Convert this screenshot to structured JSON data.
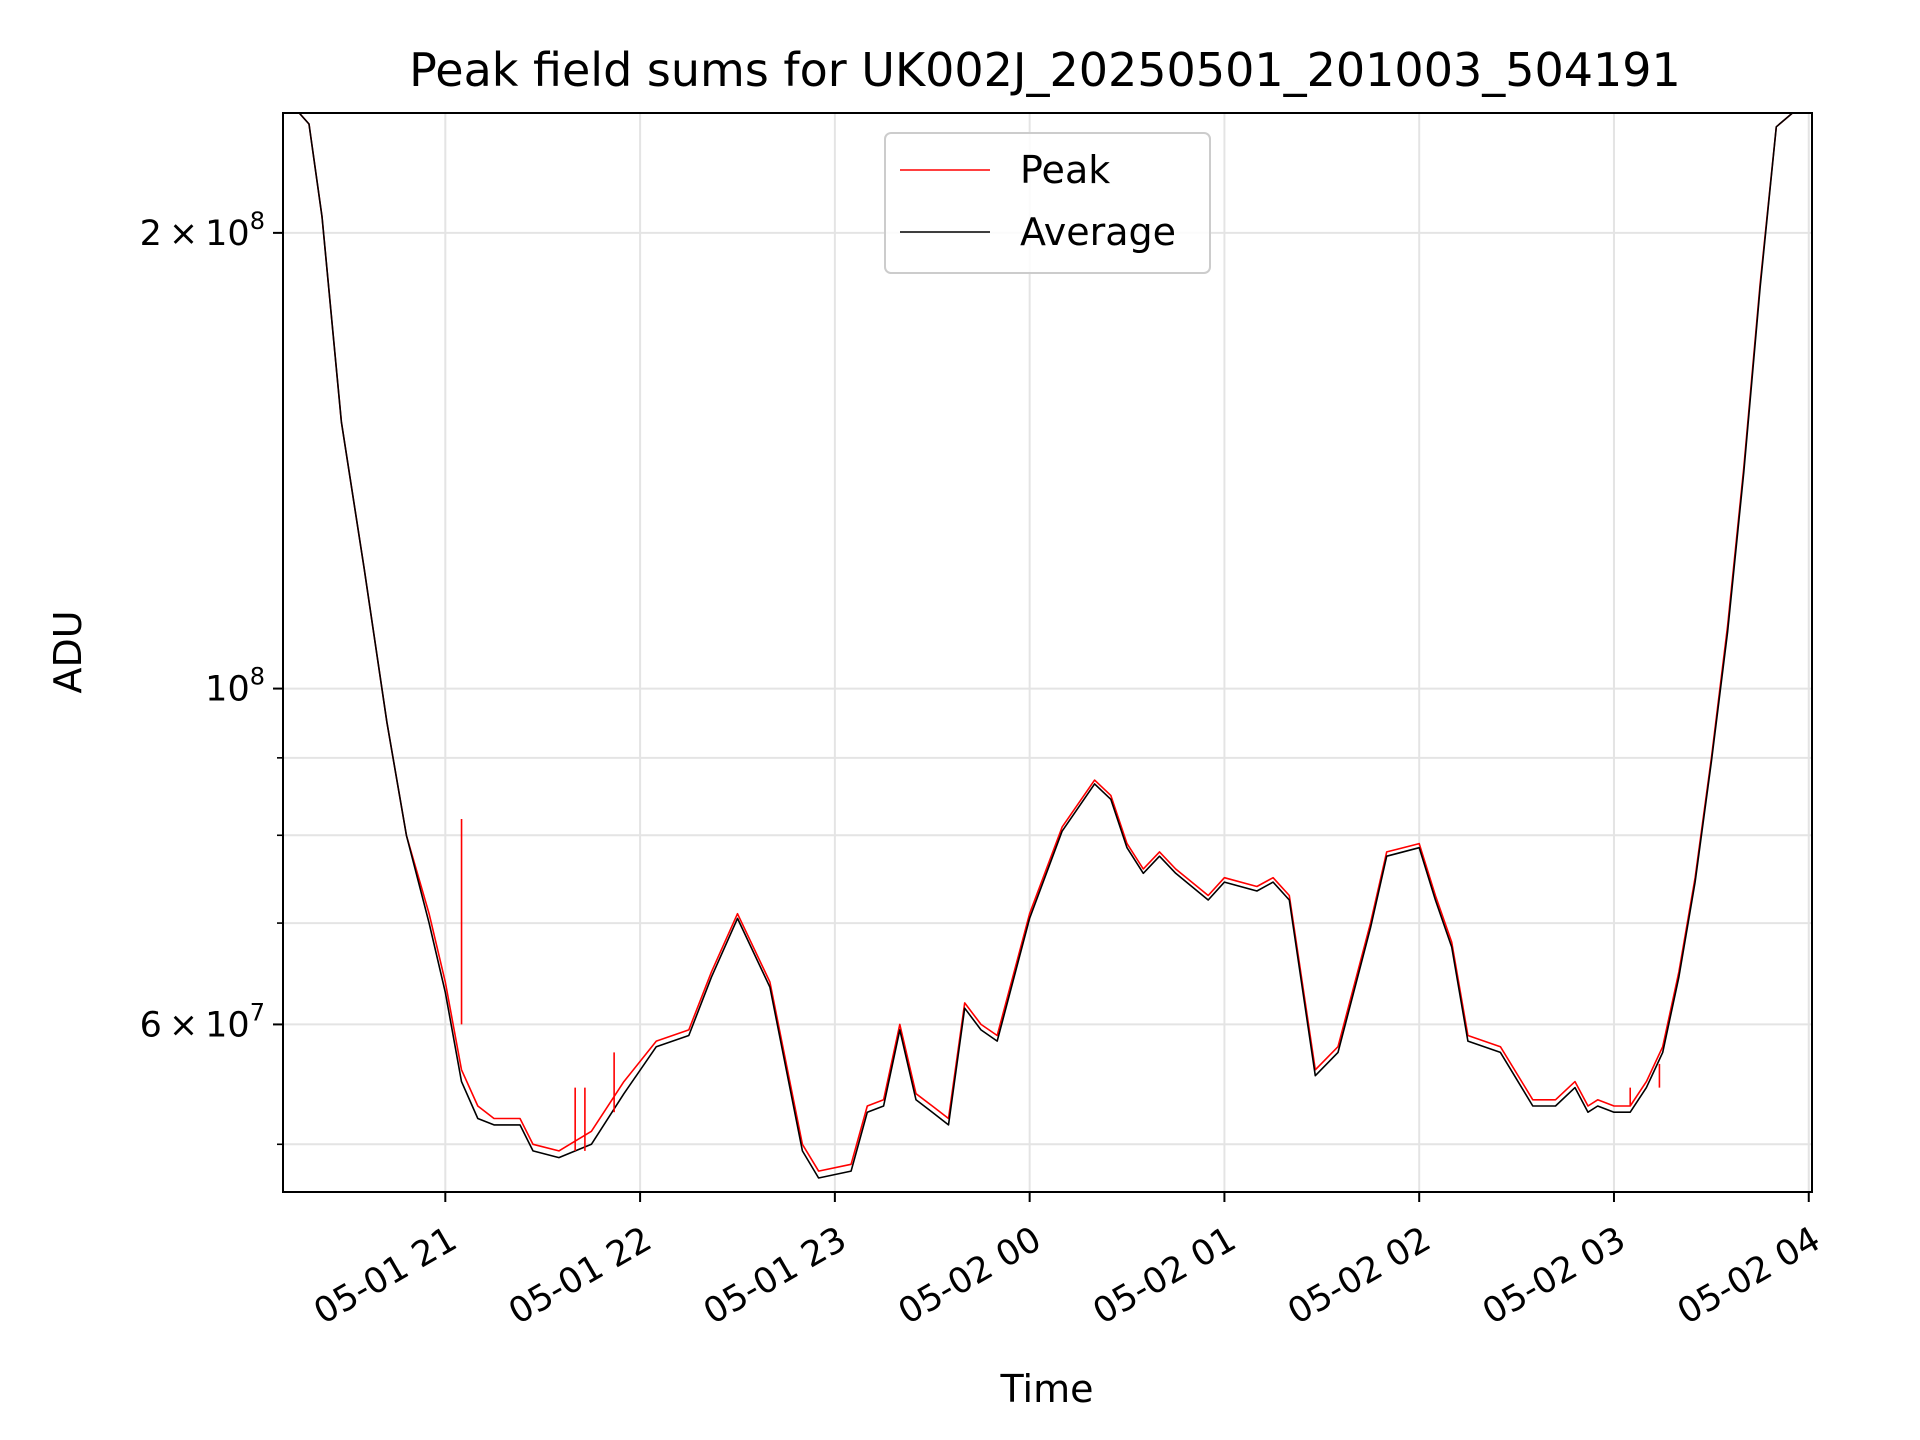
{
  "chart_data": {
    "type": "line",
    "title": "Peak field sums for UK002J_20250501_201003_504191",
    "xlabel": "Time",
    "ylabel": "ADU",
    "y_scale": "log",
    "grid": true,
    "legend_position": "upper-center",
    "xlim": [
      "2025-05-01 20:10",
      "2025-05-02 04:01"
    ],
    "ylim": [
      46500000,
      240000000
    ],
    "x_ticks": [
      {
        "value": "2025-05-01 21:00",
        "label": "05-01 21"
      },
      {
        "value": "2025-05-01 22:00",
        "label": "05-01 22"
      },
      {
        "value": "2025-05-01 23:00",
        "label": "05-01 23"
      },
      {
        "value": "2025-05-02 00:00",
        "label": "05-02 00"
      },
      {
        "value": "2025-05-02 01:00",
        "label": "05-02 01"
      },
      {
        "value": "2025-05-02 02:00",
        "label": "05-02 02"
      },
      {
        "value": "2025-05-02 03:00",
        "label": "05-02 03"
      },
      {
        "value": "2025-05-02 04:00",
        "label": "05-02 04"
      }
    ],
    "y_major_ticks": [
      {
        "value": 60000000,
        "label": "6 × 10^7",
        "mant": "6",
        "exp": "7"
      },
      {
        "value": 100000000,
        "label": "10^8",
        "mant": "",
        "exp": "8"
      },
      {
        "value": 200000000,
        "label": "2 × 10^8",
        "mant": "2",
        "exp": "8"
      }
    ],
    "y_minor_ticks": [
      50000000,
      70000000,
      80000000,
      90000000
    ],
    "series": [
      {
        "name": "Peak",
        "color": "#ff0000",
        "x": [
          "2025-05-01 20:10",
          "2025-05-01 20:15",
          "2025-05-01 20:18",
          "2025-05-01 20:22",
          "2025-05-01 20:28",
          "2025-05-01 20:35",
          "2025-05-01 20:42",
          "2025-05-01 20:48",
          "2025-05-01 20:55",
          "2025-05-01 21:00",
          "2025-05-01 21:05",
          "2025-05-01 21:10",
          "2025-05-01 21:15",
          "2025-05-01 21:20",
          "2025-05-01 21:23",
          "2025-05-01 21:27",
          "2025-05-01 21:35",
          "2025-05-01 21:45",
          "2025-05-01 21:55",
          "2025-05-01 22:05",
          "2025-05-01 22:15",
          "2025-05-01 22:22",
          "2025-05-01 22:30",
          "2025-05-01 22:40",
          "2025-05-01 22:50",
          "2025-05-01 22:55",
          "2025-05-01 23:05",
          "2025-05-01 23:10",
          "2025-05-01 23:15",
          "2025-05-01 23:20",
          "2025-05-01 23:25",
          "2025-05-01 23:30",
          "2025-05-01 23:35",
          "2025-05-01 23:40",
          "2025-05-01 23:45",
          "2025-05-01 23:50",
          "2025-05-02 00:00",
          "2025-05-02 00:10",
          "2025-05-02 00:20",
          "2025-05-02 00:25",
          "2025-05-02 00:30",
          "2025-05-02 00:35",
          "2025-05-02 00:40",
          "2025-05-02 00:45",
          "2025-05-02 00:55",
          "2025-05-02 01:00",
          "2025-05-02 01:10",
          "2025-05-02 01:15",
          "2025-05-02 01:20",
          "2025-05-02 01:28",
          "2025-05-02 01:35",
          "2025-05-02 01:45",
          "2025-05-02 01:50",
          "2025-05-02 02:00",
          "2025-05-02 02:05",
          "2025-05-02 02:10",
          "2025-05-02 02:15",
          "2025-05-02 02:25",
          "2025-05-02 02:35",
          "2025-05-02 02:42",
          "2025-05-02 02:48",
          "2025-05-02 02:52",
          "2025-05-02 02:55",
          "2025-05-02 03:00",
          "2025-05-02 03:05",
          "2025-05-02 03:10",
          "2025-05-02 03:15",
          "2025-05-02 03:20",
          "2025-05-02 03:25",
          "2025-05-02 03:30",
          "2025-05-02 03:35",
          "2025-05-02 03:40",
          "2025-05-02 03:45",
          "2025-05-02 03:50",
          "2025-05-02 03:55",
          "2025-05-02 04:01"
        ],
        "y": [
          240000000,
          240000000,
          236000000,
          205000000,
          150000000,
          120000000,
          95000000,
          80000000,
          71000000,
          64000000,
          56000000,
          53000000,
          52000000,
          52000000,
          52000000,
          50000000,
          49500000,
          51000000,
          55000000,
          58500000,
          59500000,
          65000000,
          71000000,
          64000000,
          50000000,
          48000000,
          48500000,
          53000000,
          53500000,
          60000000,
          54000000,
          53000000,
          52000000,
          62000000,
          60000000,
          59000000,
          71000000,
          81000000,
          87000000,
          85000000,
          79000000,
          76000000,
          78000000,
          76000000,
          73000000,
          75000000,
          74000000,
          75000000,
          73000000,
          56000000,
          58000000,
          70000000,
          78000000,
          79000000,
          73000000,
          68000000,
          59000000,
          58000000,
          53500000,
          53500000,
          55000000,
          53000000,
          53500000,
          53000000,
          53000000,
          55000000,
          58000000,
          65000000,
          75000000,
          90000000,
          110000000,
          140000000,
          185000000,
          235000000,
          240000000,
          240000000
        ]
      },
      {
        "name": "Average",
        "color": "#000000",
        "x": [
          "2025-05-01 20:10",
          "2025-05-01 20:15",
          "2025-05-01 20:18",
          "2025-05-01 20:22",
          "2025-05-01 20:28",
          "2025-05-01 20:35",
          "2025-05-01 20:42",
          "2025-05-01 20:48",
          "2025-05-01 20:55",
          "2025-05-01 21:00",
          "2025-05-01 21:05",
          "2025-05-01 21:10",
          "2025-05-01 21:15",
          "2025-05-01 21:20",
          "2025-05-01 21:23",
          "2025-05-01 21:27",
          "2025-05-01 21:35",
          "2025-05-01 21:45",
          "2025-05-01 21:55",
          "2025-05-01 22:05",
          "2025-05-01 22:15",
          "2025-05-01 22:22",
          "2025-05-01 22:30",
          "2025-05-01 22:40",
          "2025-05-01 22:50",
          "2025-05-01 22:55",
          "2025-05-01 23:05",
          "2025-05-01 23:10",
          "2025-05-01 23:15",
          "2025-05-01 23:20",
          "2025-05-01 23:25",
          "2025-05-01 23:30",
          "2025-05-01 23:35",
          "2025-05-01 23:40",
          "2025-05-01 23:45",
          "2025-05-01 23:50",
          "2025-05-02 00:00",
          "2025-05-02 00:10",
          "2025-05-02 00:20",
          "2025-05-02 00:25",
          "2025-05-02 00:30",
          "2025-05-02 00:35",
          "2025-05-02 00:40",
          "2025-05-02 00:45",
          "2025-05-02 00:55",
          "2025-05-02 01:00",
          "2025-05-02 01:10",
          "2025-05-02 01:15",
          "2025-05-02 01:20",
          "2025-05-02 01:28",
          "2025-05-02 01:35",
          "2025-05-02 01:45",
          "2025-05-02 01:50",
          "2025-05-02 02:00",
          "2025-05-02 02:05",
          "2025-05-02 02:10",
          "2025-05-02 02:15",
          "2025-05-02 02:25",
          "2025-05-02 02:35",
          "2025-05-02 02:42",
          "2025-05-02 02:48",
          "2025-05-02 02:52",
          "2025-05-02 02:55",
          "2025-05-02 03:00",
          "2025-05-02 03:05",
          "2025-05-02 03:10",
          "2025-05-02 03:15",
          "2025-05-02 03:20",
          "2025-05-02 03:25",
          "2025-05-02 03:30",
          "2025-05-02 03:35",
          "2025-05-02 03:40",
          "2025-05-02 03:45",
          "2025-05-02 03:50",
          "2025-05-02 03:55",
          "2025-05-02 04:01"
        ],
        "y": [
          240000000,
          240000000,
          236000000,
          205000000,
          150000000,
          120000000,
          95000000,
          80000000,
          70000000,
          63000000,
          55000000,
          52000000,
          51500000,
          51500000,
          51500000,
          49500000,
          49000000,
          50000000,
          54000000,
          58000000,
          59000000,
          64500000,
          70500000,
          63500000,
          49500000,
          47500000,
          48000000,
          52500000,
          53000000,
          59500000,
          53500000,
          52500000,
          51500000,
          61500000,
          59500000,
          58500000,
          70500000,
          80500000,
          86500000,
          84500000,
          78500000,
          75500000,
          77500000,
          75500000,
          72500000,
          74500000,
          73500000,
          74500000,
          72500000,
          55500000,
          57500000,
          69500000,
          77500000,
          78500000,
          72500000,
          67500000,
          58500000,
          57500000,
          53000000,
          53000000,
          54500000,
          52500000,
          53000000,
          52500000,
          52500000,
          54500000,
          57500000,
          64500000,
          74500000,
          89500000,
          109000000,
          139000000,
          184000000,
          235000000,
          240000000,
          240000000
        ]
      }
    ],
    "spikes": [
      {
        "x": "2025-05-01 21:05",
        "low": 60000000,
        "high": 82000000
      },
      {
        "x": "2025-05-01 21:40",
        "low": 49500000,
        "high": 54500000
      },
      {
        "x": "2025-05-01 21:43",
        "low": 49500000,
        "high": 54500000
      },
      {
        "x": "2025-05-01 21:52",
        "low": 52500000,
        "high": 57500000
      },
      {
        "x": "2025-05-02 03:05",
        "low": 53000000,
        "high": 54500000
      },
      {
        "x": "2025-05-02 03:14",
        "low": 54500000,
        "high": 56500000
      }
    ]
  }
}
